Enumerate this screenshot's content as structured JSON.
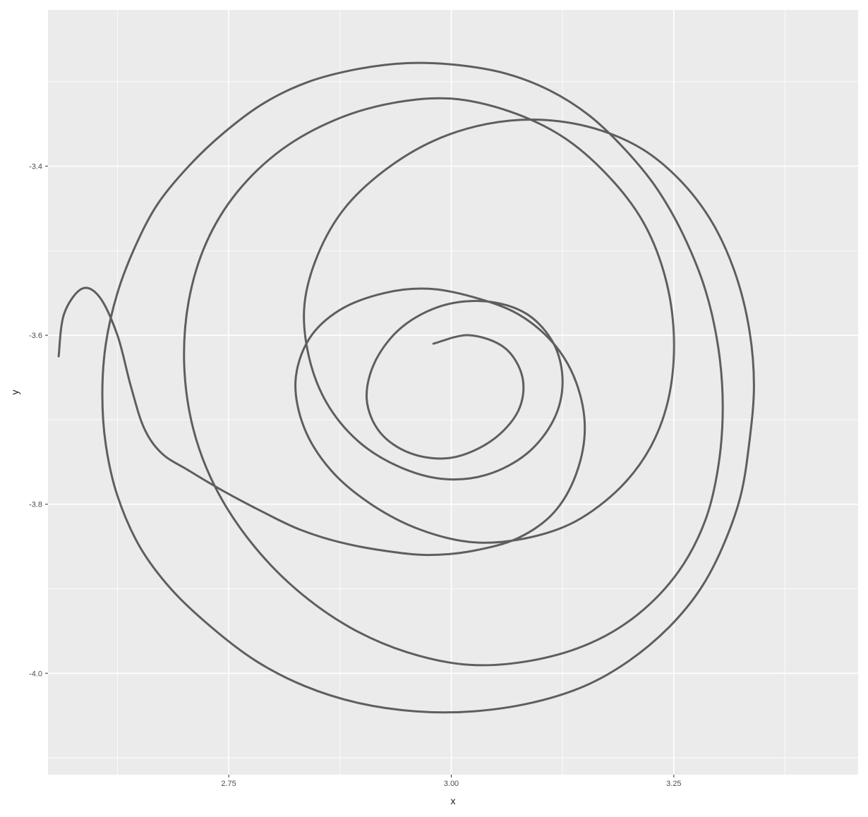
{
  "chart_data": {
    "type": "line",
    "title": "",
    "xlabel": "x",
    "ylabel": "y",
    "xlim": [
      2.547,
      3.457
    ],
    "ylim": [
      -4.12,
      -3.215
    ],
    "x_ticks": [
      2.75,
      3.0,
      3.25
    ],
    "x_tick_labels": [
      "2.75",
      "3.00",
      "3.25"
    ],
    "y_ticks": [
      -3.4,
      -3.6,
      -3.8,
      -4.0
    ],
    "y_tick_labels": [
      "-3.4",
      "-3.6",
      "-3.8",
      "-4.0"
    ],
    "grid": true,
    "panel_background": "#ebebeb",
    "line_color": "#000000",
    "line_alpha": 0.6,
    "series": [
      {
        "values": [
          [
            2.559,
            -3.625
          ],
          [
            2.565,
            -3.575
          ],
          [
            2.585,
            -3.545
          ],
          [
            2.605,
            -3.555
          ],
          [
            2.625,
            -3.6
          ],
          [
            2.64,
            -3.66
          ],
          [
            2.655,
            -3.71
          ],
          [
            2.675,
            -3.74
          ],
          [
            2.705,
            -3.76
          ],
          [
            2.745,
            -3.785
          ],
          [
            2.79,
            -3.81
          ],
          [
            2.83,
            -3.83
          ],
          [
            2.875,
            -3.845
          ],
          [
            2.925,
            -3.855
          ],
          [
            2.975,
            -3.86
          ],
          [
            3.025,
            -3.855
          ],
          [
            3.075,
            -3.84
          ],
          [
            3.115,
            -3.81
          ],
          [
            3.14,
            -3.765
          ],
          [
            3.15,
            -3.71
          ],
          [
            3.14,
            -3.655
          ],
          [
            3.115,
            -3.61
          ],
          [
            3.075,
            -3.575
          ],
          [
            3.025,
            -3.555
          ],
          [
            2.975,
            -3.545
          ],
          [
            2.925,
            -3.55
          ],
          [
            2.875,
            -3.57
          ],
          [
            2.84,
            -3.605
          ],
          [
            2.825,
            -3.655
          ],
          [
            2.835,
            -3.71
          ],
          [
            2.865,
            -3.76
          ],
          [
            2.91,
            -3.8
          ],
          [
            2.965,
            -3.83
          ],
          [
            3.025,
            -3.845
          ],
          [
            3.085,
            -3.84
          ],
          [
            3.14,
            -3.82
          ],
          [
            3.19,
            -3.78
          ],
          [
            3.225,
            -3.73
          ],
          [
            3.245,
            -3.67
          ],
          [
            3.25,
            -3.6
          ],
          [
            3.24,
            -3.53
          ],
          [
            3.215,
            -3.465
          ],
          [
            3.175,
            -3.41
          ],
          [
            3.125,
            -3.365
          ],
          [
            3.065,
            -3.335
          ],
          [
            3.0,
            -3.32
          ],
          [
            2.935,
            -3.325
          ],
          [
            2.87,
            -3.345
          ],
          [
            2.81,
            -3.38
          ],
          [
            2.76,
            -3.43
          ],
          [
            2.725,
            -3.49
          ],
          [
            2.705,
            -3.56
          ],
          [
            2.7,
            -3.635
          ],
          [
            2.71,
            -3.71
          ],
          [
            2.735,
            -3.78
          ],
          [
            2.775,
            -3.845
          ],
          [
            2.825,
            -3.9
          ],
          [
            2.885,
            -3.945
          ],
          [
            2.95,
            -3.975
          ],
          [
            3.02,
            -3.99
          ],
          [
            3.09,
            -3.985
          ],
          [
            3.155,
            -3.965
          ],
          [
            3.21,
            -3.93
          ],
          [
            3.255,
            -3.88
          ],
          [
            3.285,
            -3.82
          ],
          [
            3.3,
            -3.755
          ],
          [
            3.305,
            -3.685
          ],
          [
            3.3,
            -3.615
          ],
          [
            3.285,
            -3.545
          ],
          [
            3.26,
            -3.48
          ],
          [
            3.23,
            -3.425
          ],
          [
            3.195,
            -3.38
          ],
          [
            3.155,
            -3.34
          ],
          [
            3.11,
            -3.31
          ],
          [
            3.06,
            -3.29
          ],
          [
            3.005,
            -3.28
          ],
          [
            2.95,
            -3.278
          ],
          [
            2.895,
            -3.285
          ],
          [
            2.84,
            -3.3
          ],
          [
            2.79,
            -3.325
          ],
          [
            2.745,
            -3.36
          ],
          [
            2.705,
            -3.4
          ],
          [
            2.67,
            -3.445
          ],
          [
            2.645,
            -3.495
          ],
          [
            2.625,
            -3.55
          ],
          [
            2.612,
            -3.61
          ],
          [
            2.608,
            -3.67
          ],
          [
            2.612,
            -3.73
          ],
          [
            2.625,
            -3.79
          ],
          [
            2.65,
            -3.85
          ],
          [
            2.685,
            -3.9
          ],
          [
            2.73,
            -3.945
          ],
          [
            2.78,
            -3.985
          ],
          [
            2.835,
            -4.015
          ],
          [
            2.895,
            -4.035
          ],
          [
            2.96,
            -4.045
          ],
          [
            3.025,
            -4.045
          ],
          [
            3.09,
            -4.035
          ],
          [
            3.15,
            -4.015
          ],
          [
            3.2,
            -3.985
          ],
          [
            3.245,
            -3.945
          ],
          [
            3.28,
            -3.9
          ],
          [
            3.305,
            -3.85
          ],
          [
            3.325,
            -3.79
          ],
          [
            3.335,
            -3.725
          ],
          [
            3.34,
            -3.66
          ],
          [
            3.335,
            -3.595
          ],
          [
            3.32,
            -3.53
          ],
          [
            3.295,
            -3.47
          ],
          [
            3.26,
            -3.42
          ],
          [
            3.215,
            -3.38
          ],
          [
            3.16,
            -3.355
          ],
          [
            3.1,
            -3.345
          ],
          [
            3.04,
            -3.35
          ],
          [
            2.98,
            -3.37
          ],
          [
            2.925,
            -3.405
          ],
          [
            2.88,
            -3.45
          ],
          [
            2.85,
            -3.505
          ],
          [
            2.835,
            -3.565
          ],
          [
            2.84,
            -3.625
          ],
          [
            2.86,
            -3.68
          ],
          [
            2.895,
            -3.725
          ],
          [
            2.94,
            -3.755
          ],
          [
            2.99,
            -3.77
          ],
          [
            3.04,
            -3.765
          ],
          [
            3.085,
            -3.74
          ],
          [
            3.115,
            -3.7
          ],
          [
            3.125,
            -3.655
          ],
          [
            3.115,
            -3.61
          ],
          [
            3.085,
            -3.575
          ],
          [
            3.04,
            -3.56
          ],
          [
            2.99,
            -3.565
          ],
          [
            2.945,
            -3.59
          ],
          [
            2.915,
            -3.63
          ],
          [
            2.905,
            -3.675
          ],
          [
            2.92,
            -3.715
          ],
          [
            2.955,
            -3.74
          ],
          [
            3.0,
            -3.745
          ],
          [
            3.045,
            -3.725
          ],
          [
            3.075,
            -3.69
          ],
          [
            3.08,
            -3.65
          ],
          [
            3.06,
            -3.615
          ],
          [
            3.02,
            -3.6
          ],
          [
            2.98,
            -3.61
          ]
        ]
      }
    ]
  }
}
